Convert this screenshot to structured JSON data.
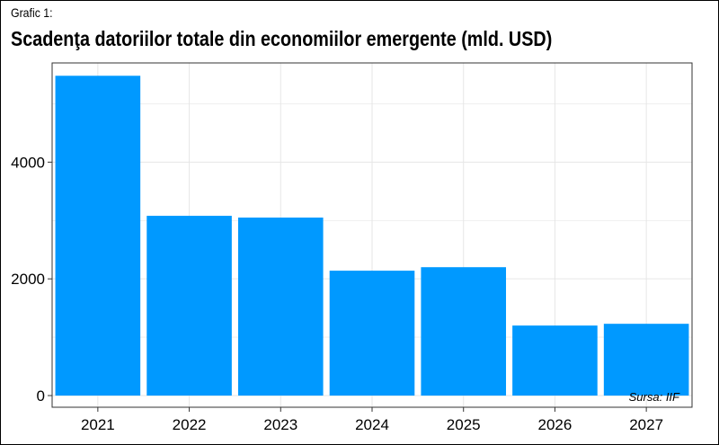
{
  "caption": "Grafic 1:",
  "title": "Scadenţa datoriilor totale din economiilor emergente (mld. USD)",
  "source": "Sursa: IIF",
  "colors": {
    "bar": "#0099ff",
    "grid": "#e6e6e6",
    "panel_border": "#333333"
  },
  "chart_data": {
    "type": "bar",
    "title": "Scadenţa datoriilor totale din economiilor emergente (mld. USD)",
    "xlabel": "",
    "ylabel": "",
    "categories": [
      "2021",
      "2022",
      "2023",
      "2024",
      "2025",
      "2026",
      "2027"
    ],
    "values": [
      5480,
      3080,
      3050,
      2140,
      2200,
      1200,
      1230
    ],
    "ylim": [
      -200,
      5700
    ],
    "yticks": [
      0,
      2000,
      4000
    ],
    "ytick_labels": [
      "0",
      "2000",
      "4000"
    ],
    "grid": true,
    "legend": "none"
  }
}
